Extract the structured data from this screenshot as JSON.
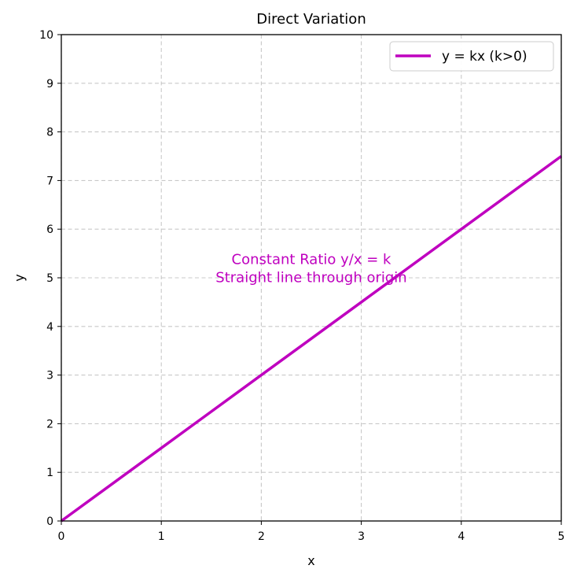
{
  "chart_data": {
    "type": "line",
    "title": "Direct Variation",
    "xlabel": "x",
    "ylabel": "y",
    "xlim": [
      0,
      5
    ],
    "ylim": [
      0,
      10
    ],
    "x_ticks": [
      "0",
      "1",
      "2",
      "3",
      "4",
      "5"
    ],
    "y_ticks": [
      "0",
      "1",
      "2",
      "3",
      "4",
      "5",
      "6",
      "7",
      "8",
      "9",
      "10"
    ],
    "grid": true,
    "legend_position": "top-right",
    "series": [
      {
        "name": "y = kx (k>0)",
        "color": "#bf00bf",
        "x": [
          0,
          1,
          2,
          3,
          4,
          5
        ],
        "y": [
          0,
          1.5,
          3,
          4.5,
          6,
          7.5
        ]
      }
    ],
    "annotation": {
      "lines": [
        "Constant Ratio y/x = k",
        "Straight line through origin"
      ],
      "color": "#bf00bf",
      "x": 2.5,
      "y": 5.2
    }
  }
}
